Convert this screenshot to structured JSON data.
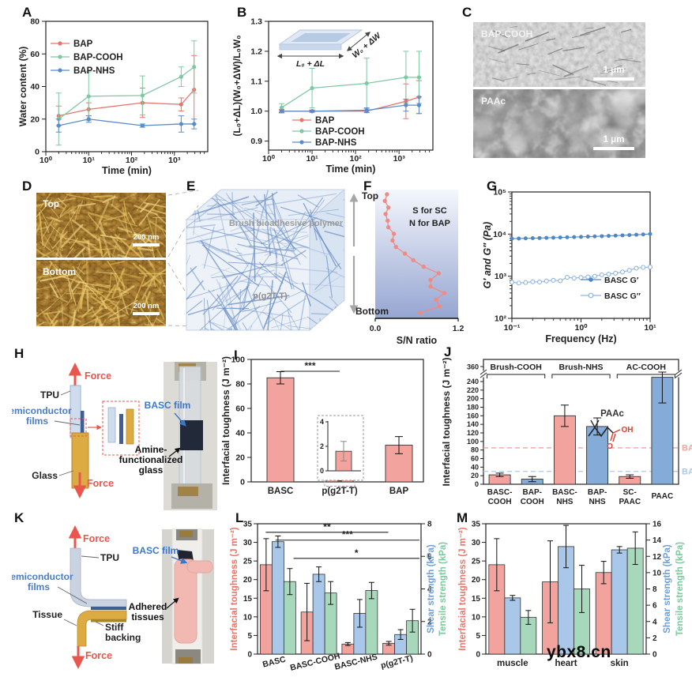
{
  "figure": {
    "watermark": "ybx8.cn"
  },
  "panels": {
    "A": {
      "label": "A"
    },
    "B": {
      "label": "B",
      "inset_length": "L₀ + ΔL",
      "inset_width": "W₀ + ΔW"
    },
    "C": {
      "label": "C",
      "top_label": "BAP-COOH",
      "bottom_label": "PAAc",
      "scale_bar": "1 μm"
    },
    "D": {
      "label": "D",
      "top_label": "Top",
      "bottom_label": "Bottom",
      "scale_bar": "200 nm"
    },
    "E": {
      "label": "E",
      "polymer_label": "Brush bioadhesive polymer",
      "substrate_label": "p(g2T-T)"
    },
    "F": {
      "label": "F",
      "top_label": "Top",
      "bottom_label": "Bottom",
      "note1": "S for SC",
      "note2": "N for BAP"
    },
    "G": {
      "label": "G"
    },
    "H": {
      "label": "H",
      "force_top": "Force",
      "force_bottom": "Force",
      "tpu": "TPU",
      "semiconductor1": "Semiconductor",
      "semiconductor2": "films",
      "glass": "Glass",
      "basc_film": "BASC film",
      "amine1": "Amine-",
      "amine2": "functionalized",
      "amine3": "glass"
    },
    "I": {
      "label": "I"
    },
    "J": {
      "label": "J"
    },
    "K": {
      "label": "K",
      "force_top": "Force",
      "force_bottom": "Force",
      "tpu": "TPU",
      "semiconductor1": "Semiconductor",
      "semiconductor2": "films",
      "tissue": "Tissue",
      "stiff1": "Stiff",
      "stiff2": "backing",
      "basc_film": "BASC film",
      "adhered1": "Adhered",
      "adhered2": "tissues"
    },
    "L": {
      "label": "L"
    },
    "M": {
      "label": "M"
    }
  },
  "chart_data": [
    {
      "panel": "A",
      "type": "line",
      "xscale": "log",
      "xlabel": "Time (min)",
      "ylabel": "Water content (%)",
      "ylim": [
        0,
        80
      ],
      "yticks": [
        0,
        20,
        40,
        60,
        80
      ],
      "xlim": [
        1,
        6000
      ],
      "xtick_labels": [
        "10⁰",
        "10¹",
        "10²",
        "10³"
      ],
      "x": [
        2,
        10,
        180,
        1440,
        2880
      ],
      "legend_pos": "top-left",
      "series": [
        {
          "name": "BAP",
          "color": "#e8756b",
          "values": [
            22,
            26,
            30,
            29,
            38
          ],
          "errors": [
            6,
            4,
            9,
            4,
            21
          ]
        },
        {
          "name": "BAP-COOH",
          "color": "#7ec8a2",
          "values": [
            20,
            34,
            34.5,
            46,
            52
          ],
          "errors": [
            16,
            15,
            12,
            6,
            16
          ]
        },
        {
          "name": "BAP-NHS",
          "color": "#5b8cc8",
          "values": [
            16,
            20,
            16,
            17,
            17
          ],
          "errors": [
            4,
            2,
            1,
            5,
            3
          ]
        }
      ]
    },
    {
      "panel": "B",
      "type": "line",
      "xscale": "log",
      "xlabel": "Time (min)",
      "ylabel": "(L₀+ΔL)(W₀+ΔW)/L₀W₀",
      "ylim": [
        0.87,
        1.3
      ],
      "yticks": [
        0.9,
        1.0,
        1.1,
        1.2,
        1.3
      ],
      "ytick_labels": [
        "0.9",
        "1.0",
        "1.1",
        "1.2",
        "1.3"
      ],
      "xlim": [
        1,
        6000
      ],
      "xtick_labels": [
        "10⁰",
        "10¹",
        "10²",
        "10³"
      ],
      "x": [
        2,
        10,
        180,
        1440,
        2880
      ],
      "legend_pos": "bottom-left",
      "series": [
        {
          "name": "BAP",
          "color": "#e8756b",
          "values": [
            1.0,
            1.0,
            1.0,
            1.033,
            1.047
          ],
          "errors": [
            0.006,
            0.004,
            0.004,
            0.058,
            0.055
          ]
        },
        {
          "name": "BAP-COOH",
          "color": "#7ec8a2",
          "values": [
            1.012,
            1.077,
            1.093,
            1.113,
            1.113
          ],
          "errors": [
            0.013,
            0.066,
            0.084,
            0.087,
            0.087
          ]
        },
        {
          "name": "BAP-NHS",
          "color": "#5b8cc8",
          "values": [
            1.0,
            1.0,
            1.003,
            1.02,
            1.02
          ],
          "errors": [
            0.004,
            0.003,
            0.008,
            0.02,
            0.028
          ]
        }
      ]
    },
    {
      "panel": "F",
      "type": "profile",
      "xlabel": "S/N ratio",
      "xlim": [
        0,
        1.2
      ],
      "xtick_labels": [
        "0.0",
        "1.2"
      ],
      "color": "#ef8b84",
      "values_top_to_bottom": [
        0.17,
        0.14,
        0.19,
        0.15,
        0.18,
        0.19,
        0.27,
        0.25,
        0.3,
        0.43,
        0.55,
        0.7,
        0.92,
        0.8,
        0.8,
        1.0,
        0.88,
        0.93,
        0.65
      ]
    },
    {
      "panel": "G",
      "type": "line",
      "xscale": "log",
      "yscale": "log",
      "xlabel": "Frequency (Hz)",
      "ylabel": "G′ and G″ (Pa)",
      "xlim": [
        0.1,
        10
      ],
      "xtick_labels": [
        "10⁻¹",
        "10⁰",
        "10¹"
      ],
      "ylim": [
        100,
        100000
      ],
      "ytick_labels": [
        "10²",
        "10³",
        "10⁴",
        "10⁵"
      ],
      "x": [
        0.1,
        0.126,
        0.158,
        0.2,
        0.251,
        0.316,
        0.398,
        0.501,
        0.631,
        0.794,
        1,
        1.26,
        1.58,
        2,
        2.51,
        3.16,
        3.98,
        5.01,
        6.31,
        7.94,
        10
      ],
      "series": [
        {
          "name": "BASC G′",
          "marker": "filled",
          "color": "#4e86c6",
          "values": [
            7800,
            7850,
            7920,
            7990,
            8060,
            8140,
            8220,
            8300,
            8390,
            8490,
            8590,
            8700,
            8810,
            8930,
            9060,
            9190,
            9330,
            9480,
            9640,
            9820,
            10100
          ]
        },
        {
          "name": "BASC G″",
          "marker": "open",
          "color": "#8fb3e0",
          "values": [
            720,
            690,
            710,
            740,
            730,
            770,
            800,
            780,
            940,
            900,
            930,
            960,
            1000,
            1080,
            1120,
            1180,
            1260,
            1380,
            1550,
            1620,
            1650
          ]
        }
      ]
    },
    {
      "panel": "I",
      "type": "bar",
      "ylabel": "Interfacial toughness (J m⁻²)",
      "ylim": [
        0,
        100
      ],
      "yticks": [
        0,
        20,
        40,
        60,
        80,
        100
      ],
      "bar_color": "#f2a39d",
      "categories": [
        "BASC",
        "p(g2T-T)",
        "BAP"
      ],
      "values": [
        85,
        1.6,
        30
      ],
      "errors": [
        5,
        0.8,
        7
      ],
      "significance": {
        "stars": "***",
        "between": [
          "BASC",
          "p(g2T-T)"
        ]
      },
      "inset": {
        "category": "p(g2T-T)",
        "value": 1.6,
        "error": 0.8,
        "yticks": [
          0,
          2,
          4
        ]
      }
    },
    {
      "panel": "J",
      "type": "bar",
      "ylabel": "Interfacial toughness (J m⁻²)",
      "yticks": [
        0,
        20,
        40,
        60,
        80,
        100,
        120,
        140,
        160,
        180,
        200,
        220,
        240
      ],
      "ybreak_top_tick": 360,
      "categories": [
        "BASC-COOH",
        "BAP-COOH",
        "BASC-NHS",
        "BAP-NHS",
        "SC-PAAC",
        "PAAC"
      ],
      "cat_lines": [
        [
          "BASC-",
          "COOH"
        ],
        [
          "BAP-",
          "COOH"
        ],
        [
          "BASC-",
          "NHS"
        ],
        [
          "BAP-",
          "NHS"
        ],
        [
          "SC-",
          "PAAC"
        ],
        [
          "PAAC"
        ]
      ],
      "values": [
        22,
        12,
        160,
        135,
        18,
        250
      ],
      "errors": [
        4,
        6,
        25,
        20,
        4,
        60
      ],
      "bar_colors": [
        "#f2a39d",
        "#85abd8",
        "#f2a39d",
        "#85abd8",
        "#f2a39d",
        "#85abd8"
      ],
      "groups": [
        {
          "label": "Brush-COOH",
          "from": 0,
          "to": 1
        },
        {
          "label": "Brush-NHS",
          "from": 2,
          "to": 3
        },
        {
          "label": "AC-COOH",
          "from": 4,
          "to": 5
        }
      ],
      "ref_lines": [
        {
          "label": "BASC",
          "value": 85,
          "color": "#f2a4a0"
        },
        {
          "label": "BAP",
          "value": 30,
          "color": "#a9c9ea"
        }
      ],
      "molecule_label": "PAAc",
      "molecule_oh": "OH",
      "molecule_o": "O"
    },
    {
      "panel": "L",
      "type": "grouped-bar-dual-axis",
      "categories": [
        "BASC",
        "BASC-COOH",
        "BASC-NHS",
        "p(g2T-T)"
      ],
      "rotate_categories": true,
      "left_axis": {
        "label": "Interfacial toughness (J m⁻²)",
        "color": "#e8756b",
        "lim": [
          0,
          35
        ],
        "ticks": [
          0,
          5,
          10,
          15,
          20,
          25,
          30,
          35
        ]
      },
      "right_axis": {
        "lim": [
          0,
          8
        ],
        "ticks": [
          0,
          2,
          4,
          6,
          8
        ],
        "labels": [
          {
            "text": "Shear strength (kPa)",
            "color": "#6f9fd8"
          },
          {
            "text": "Tensile strength (kPa)",
            "color": "#7cc99d"
          }
        ]
      },
      "series": [
        {
          "name": "Interfacial toughness",
          "axis": "left",
          "color": "#f2a39d",
          "values": [
            24,
            11.3,
            2.7,
            2.9
          ],
          "errors": [
            7,
            7.7,
            0.4,
            0.5
          ]
        },
        {
          "name": "Shear strength",
          "axis": "right",
          "color": "#a9c7e8",
          "values": [
            6.9,
            4.9,
            2.5,
            1.2
          ],
          "errors": [
            0.35,
            0.45,
            0.85,
            0.3
          ]
        },
        {
          "name": "Tensile strength",
          "axis": "right",
          "color": "#a8d8bc",
          "values": [
            4.45,
            3.75,
            3.9,
            2.05
          ],
          "errors": [
            0.8,
            0.7,
            0.5,
            0.7
          ]
        }
      ],
      "significance": [
        {
          "stars": "**",
          "y_left": 32.7,
          "x1": 0.05,
          "x2": 0.8
        },
        {
          "stars": "***",
          "y_left": 30.6,
          "x1": 0.11,
          "x2": 0.99
        },
        {
          "stars": "*",
          "y_left": 25.7,
          "x1": 0.22,
          "x2": 0.99
        }
      ]
    },
    {
      "panel": "M",
      "type": "grouped-bar-dual-axis",
      "categories": [
        "muscle",
        "heart",
        "skin"
      ],
      "rotate_categories": false,
      "left_axis": {
        "label": "Interfacial toughness (J m⁻²)",
        "color": "#e8756b",
        "lim": [
          0,
          35
        ],
        "ticks": [
          0,
          5,
          10,
          15,
          20,
          25,
          30,
          35
        ]
      },
      "right_axis": {
        "lim": [
          0,
          16
        ],
        "ticks": [
          0,
          2,
          4,
          6,
          8,
          10,
          12,
          14,
          16
        ],
        "labels": [
          {
            "text": "Shear strength (kPa)",
            "color": "#6f9fd8"
          },
          {
            "text": "Tensile strength (kPa)",
            "color": "#7cc99d"
          }
        ]
      },
      "series": [
        {
          "name": "Interfacial toughness",
          "axis": "left",
          "color": "#f2a39d",
          "values": [
            24,
            19.4,
            21.9
          ],
          "errors": [
            7,
            11,
            3
          ]
        },
        {
          "name": "Shear strength",
          "axis": "right",
          "color": "#a9c7e8",
          "values": [
            6.9,
            13.2,
            12.8
          ],
          "errors": [
            0.3,
            2.6,
            0.4
          ]
        },
        {
          "name": "Tensile strength",
          "axis": "right",
          "color": "#a8d8bc",
          "values": [
            4.5,
            8,
            13
          ],
          "errors": [
            0.85,
            2.9,
            2
          ]
        }
      ]
    }
  ]
}
